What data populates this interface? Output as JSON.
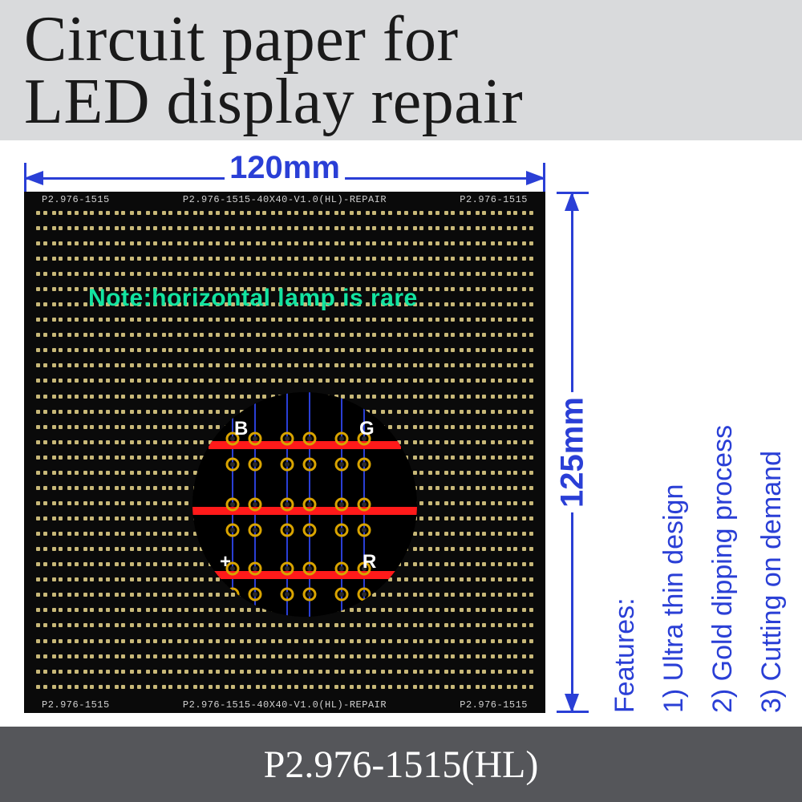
{
  "title": {
    "line1": "Circuit paper for",
    "line2": "LED display repair"
  },
  "dimensions": {
    "width_label": "120mm",
    "height_label": "125mm"
  },
  "features": {
    "heading": "Features:",
    "items": [
      "1) Ultra thin design",
      "2) Gold dipping process",
      "3) Cutting on demand"
    ]
  },
  "board": {
    "silk_left": "P2.976-1515",
    "silk_center": "P2.976-1515-40X40-V1.0(HL)-REPAIR",
    "silk_right": "P2.976-1515",
    "note": "Note:horizontal lamp is rare",
    "grid": {
      "cols": 32,
      "rows": 32
    },
    "colors": {
      "board_bg": "#0a0a0a",
      "pad": "#c8b878",
      "silk": "#d0d0d0",
      "note": "#13e4a1"
    }
  },
  "zoom": {
    "trace_color": "#ff1a1a",
    "via_ring": "#d9a400",
    "via_hole": "#2a2a2a",
    "guide_color": "#2a3fd6",
    "labels": {
      "B": "B",
      "G": "G",
      "plus": "+",
      "R": "R"
    }
  },
  "footer": {
    "model": "P2.976-1515(HL)"
  },
  "colors": {
    "accent": "#2a3fd6",
    "title_band": "#d9dadc",
    "footer_bg": "#55565a"
  }
}
